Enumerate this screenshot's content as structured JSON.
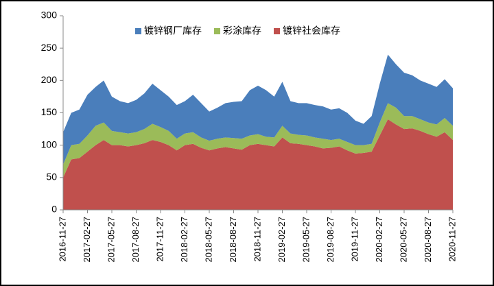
{
  "chart_data": {
    "type": "stacked_area",
    "categories": [
      "2016-11-27",
      null,
      null,
      "2017-02-27",
      null,
      null,
      "2017-05-27",
      null,
      null,
      "2017-08-27",
      null,
      null,
      "2017-11-27",
      null,
      null,
      "2018-02-27",
      null,
      null,
      "2018-05-27",
      null,
      null,
      "2018-08-27",
      null,
      null,
      "2018-11-27",
      null,
      null,
      "2019-02-27",
      null,
      null,
      "2019-05-27",
      null,
      null,
      "2019-08-27",
      null,
      null,
      "2019-11-27",
      null,
      null,
      "2020-02-27",
      null,
      null,
      "2020-05-27",
      null,
      null,
      "2020-08-27",
      null,
      null,
      "2020-11-27"
    ],
    "series": [
      {
        "name": "镀锌钢厂库存",
        "color": "#4a7ebb",
        "values": [
          50,
          50,
          53,
          63,
          60,
          65,
          53,
          48,
          47,
          50,
          55,
          62,
          57,
          53,
          52,
          50,
          58,
          53,
          45,
          48,
          53,
          56,
          58,
          70,
          75,
          72,
          63,
          68,
          50,
          49,
          50,
          50,
          50,
          47,
          47,
          45,
          38,
          33,
          43,
          60,
          75,
          67,
          67,
          63,
          60,
          60,
          58,
          60,
          58
        ]
      },
      {
        "name": "彩涂库存",
        "color": "#9bbb59",
        "values": [
          20,
          22,
          22,
          25,
          30,
          27,
          22,
          20,
          20,
          20,
          22,
          25,
          23,
          22,
          18,
          18,
          18,
          16,
          15,
          15,
          15,
          16,
          17,
          15,
          15,
          13,
          14,
          18,
          15,
          14,
          15,
          14,
          15,
          12,
          12,
          13,
          13,
          12,
          12,
          20,
          25,
          26,
          20,
          19,
          18,
          18,
          19,
          22,
          22
        ]
      },
      {
        "name": "镀锌社会库存",
        "color": "#c0504d",
        "values": [
          50,
          78,
          80,
          90,
          100,
          108,
          100,
          100,
          98,
          100,
          103,
          108,
          105,
          100,
          92,
          100,
          102,
          96,
          92,
          95,
          97,
          95,
          93,
          100,
          102,
          100,
          98,
          112,
          103,
          102,
          100,
          98,
          95,
          96,
          98,
          92,
          87,
          88,
          90,
          115,
          140,
          132,
          125,
          126,
          122,
          117,
          113,
          120,
          108
        ]
      }
    ],
    "ylim": [
      0,
      300
    ],
    "yticks": [
      0,
      50,
      100,
      150,
      200,
      250,
      300
    ],
    "legend": "top"
  }
}
